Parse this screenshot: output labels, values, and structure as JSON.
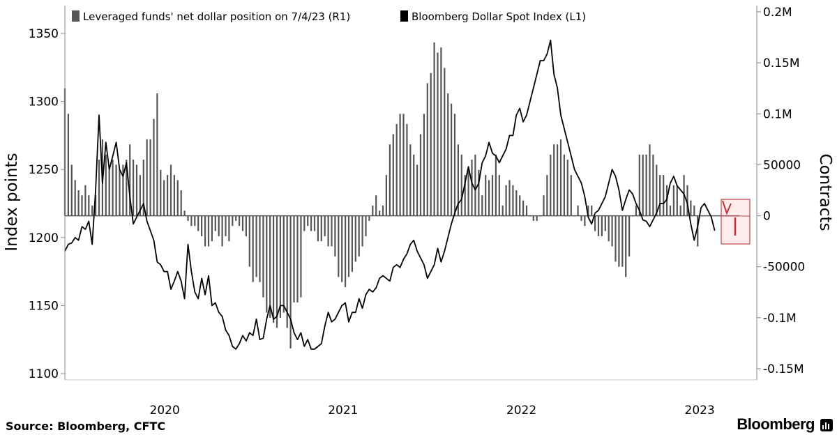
{
  "chart_data": {
    "type": "bar+line",
    "title": "",
    "legend": {
      "placement": "top-left",
      "entries": [
        {
          "label": "Leveraged funds' net dollar position on 7/4/23 (R1)",
          "swatch": "#555555"
        },
        {
          "label": "Bloomberg Dollar Spot Index (L1)",
          "swatch": "#000000"
        }
      ]
    },
    "left_axis": {
      "title": "Index points",
      "min": 1100,
      "max": 1360,
      "ticks": [
        1100,
        1150,
        1200,
        1250,
        1300,
        1350
      ],
      "tick_labels": [
        "1100",
        "1150",
        "1200",
        "1250",
        "1300",
        "1350"
      ]
    },
    "right_axis": {
      "title": "Contracts",
      "min": -150000,
      "max": 200000,
      "ticks": [
        200000,
        150000,
        100000,
        50000,
        0,
        -50000,
        -100000,
        -150000
      ],
      "tick_labels": [
        "0.2M",
        "0.15M",
        "0.1M",
        "50000",
        "0",
        "-50000",
        "-0.1M",
        "-0.15M"
      ]
    },
    "x_axis": {
      "min": 2019.45,
      "max": 2023.33,
      "ticks": [
        2020,
        2021,
        2022,
        2023
      ],
      "tick_labels": [
        "2020",
        "2021",
        "2022",
        "2023"
      ]
    },
    "series_bars": {
      "name": "Leveraged funds' net dollar position on 7/4/23",
      "axis": "right",
      "color": "#555555",
      "start": 2019.45,
      "step": 0.01918,
      "values": [
        125000,
        100000,
        50000,
        35000,
        25000,
        20000,
        30000,
        20000,
        10000,
        20000,
        55000,
        75000,
        60000,
        45000,
        55000,
        50000,
        45000,
        50000,
        55000,
        70000,
        55000,
        50000,
        40000,
        55000,
        75000,
        75000,
        95000,
        120000,
        45000,
        35000,
        40000,
        50000,
        40000,
        35000,
        25000,
        5000,
        -5000,
        -10000,
        -10000,
        -15000,
        -20000,
        -30000,
        -30000,
        -25000,
        -15000,
        -20000,
        -30000,
        -20000,
        -25000,
        -10000,
        -5000,
        -10000,
        -15000,
        -20000,
        -50000,
        -65000,
        -60000,
        -65000,
        -80000,
        -95000,
        -100000,
        -105000,
        -110000,
        -100000,
        -95000,
        -110000,
        -130000,
        -85000,
        -85000,
        -80000,
        -15000,
        -10000,
        -15000,
        -15000,
        -25000,
        -25000,
        -20000,
        -30000,
        -30000,
        -40000,
        -60000,
        -65000,
        -70000,
        -60000,
        -55000,
        -45000,
        -40000,
        -30000,
        -20000,
        -5000,
        10000,
        20000,
        5000,
        10000,
        40000,
        70000,
        80000,
        90000,
        100000,
        100000,
        90000,
        70000,
        60000,
        50000,
        80000,
        100000,
        130000,
        140000,
        170000,
        160000,
        165000,
        145000,
        120000,
        110000,
        100000,
        70000,
        60000,
        40000,
        45000,
        55000,
        60000,
        45000,
        20000,
        40000,
        35000,
        40000,
        60000,
        40000,
        10000,
        30000,
        35000,
        30000,
        25000,
        20000,
        15000,
        10000,
        0,
        -5000,
        -5000,
        0,
        20000,
        40000,
        60000,
        70000,
        70000,
        75000,
        60000,
        55000,
        40000,
        0,
        10000,
        -5000,
        -10000,
        10000,
        10000,
        -15000,
        -20000,
        -20000,
        -15000,
        -25000,
        -30000,
        -45000,
        -50000,
        -50000,
        -60000,
        -40000,
        0,
        10000,
        60000,
        60000,
        60000,
        70000,
        60000,
        50000,
        40000,
        40000,
        30000,
        10000,
        30000,
        30000,
        10000,
        40000,
        30000,
        15000,
        10000,
        -30000
      ]
    },
    "series_line": {
      "name": "Bloomberg Dollar Spot Index",
      "axis": "left",
      "color": "#000000",
      "start": 2019.45,
      "step": 0.01918,
      "values": [
        1190,
        1195,
        1196,
        1200,
        1198,
        1208,
        1206,
        1212,
        1195,
        1235,
        1290,
        1240,
        1270,
        1250,
        1260,
        1270,
        1250,
        1245,
        1255,
        1230,
        1210,
        1215,
        1220,
        1225,
        1212,
        1205,
        1198,
        1182,
        1180,
        1175,
        1175,
        1162,
        1168,
        1175,
        1168,
        1155,
        1195,
        1175,
        1160,
        1155,
        1170,
        1158,
        1172,
        1150,
        1152,
        1145,
        1142,
        1132,
        1128,
        1120,
        1118,
        1122,
        1128,
        1124,
        1130,
        1128,
        1140,
        1125,
        1126,
        1140,
        1150,
        1140,
        1142,
        1150,
        1150,
        1145,
        1140,
        1130,
        1125,
        1130,
        1120,
        1125,
        1118,
        1118,
        1120,
        1122,
        1135,
        1145,
        1138,
        1140,
        1145,
        1150,
        1152,
        1138,
        1145,
        1145,
        1155,
        1148,
        1158,
        1162,
        1160,
        1163,
        1170,
        1172,
        1170,
        1168,
        1178,
        1180,
        1178,
        1184,
        1188,
        1195,
        1198,
        1190,
        1185,
        1180,
        1170,
        1175,
        1180,
        1192,
        1182,
        1190,
        1200,
        1210,
        1218,
        1225,
        1228,
        1240,
        1252,
        1240,
        1235,
        1240,
        1255,
        1260,
        1270,
        1262,
        1260,
        1255,
        1260,
        1265,
        1275,
        1275,
        1290,
        1295,
        1285,
        1290,
        1300,
        1310,
        1320,
        1330,
        1330,
        1335,
        1345,
        1320,
        1310,
        1290,
        1280,
        1270,
        1260,
        1250,
        1245,
        1240,
        1230,
        1215,
        1210,
        1218,
        1220,
        1225,
        1230,
        1240,
        1250,
        1245,
        1235,
        1220,
        1228,
        1235,
        1232,
        1225,
        1220,
        1213,
        1212,
        1208,
        1213,
        1218,
        1225,
        1225,
        1228,
        1240,
        1245,
        1238,
        1235,
        1232,
        1225,
        1210,
        1198,
        1208,
        1222,
        1225,
        1220,
        1215,
        1205
      ]
    }
  },
  "footer": {
    "source": "Source: Bloomberg, CFTC",
    "brand": "Bloomberg"
  }
}
